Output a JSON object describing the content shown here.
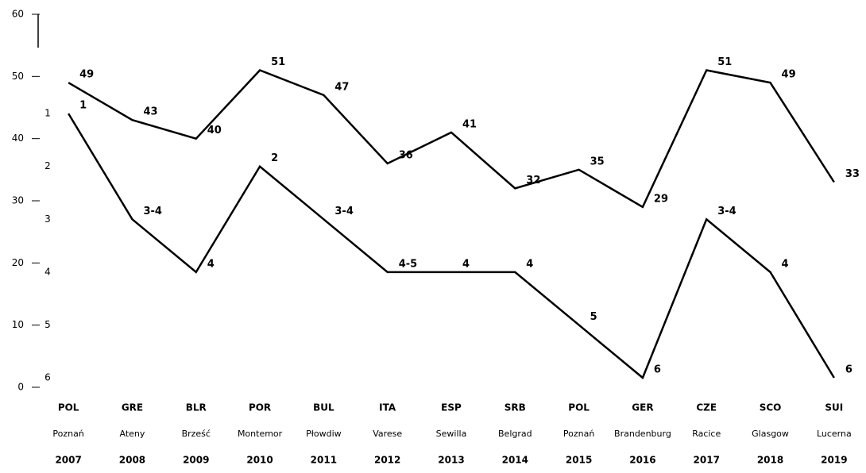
{
  "chart_data": {
    "type": "line",
    "categories": [
      "POL",
      "GRE",
      "BLR",
      "POR",
      "BUL",
      "ITA",
      "ESP",
      "SRB",
      "POL",
      "GER",
      "CZE",
      "SCO",
      "SUI"
    ],
    "cities": [
      "Poznań",
      "Ateny",
      "Brześć",
      "Montemor",
      "Płowdiw",
      "Varese",
      "Sewilla",
      "Belgrad",
      "Poznań",
      "Brandenburg",
      "Racice",
      "Glasgow",
      "Lucerna"
    ],
    "years": [
      "2007",
      "2008",
      "2009",
      "2010",
      "2011",
      "2012",
      "2013",
      "2014",
      "2015",
      "2016",
      "2017",
      "2018",
      "2019"
    ],
    "series": [
      {
        "color": "#000000",
        "values": [
          49,
          43,
          40,
          51,
          47,
          36,
          41,
          32,
          35,
          29,
          51,
          49,
          33
        ]
      },
      {
        "color": "#000000",
        "axis": "y2",
        "values": [
          1,
          3,
          4,
          2,
          3,
          4,
          4,
          4,
          5,
          6,
          3,
          4,
          6
        ],
        "value_labels": [
          "1",
          "3-4",
          "4",
          "2",
          "3-4",
          "4-5",
          "4",
          "4",
          "5",
          "6",
          "3-4",
          "4",
          "6"
        ]
      }
    ],
    "ylim": [
      0,
      60
    ],
    "yticks": [
      0,
      10,
      20,
      30,
      40,
      50,
      60
    ],
    "y2lim": [
      6.18,
      -0.88
    ],
    "y2ticks": [
      1,
      2,
      3,
      4,
      5,
      6
    ]
  }
}
